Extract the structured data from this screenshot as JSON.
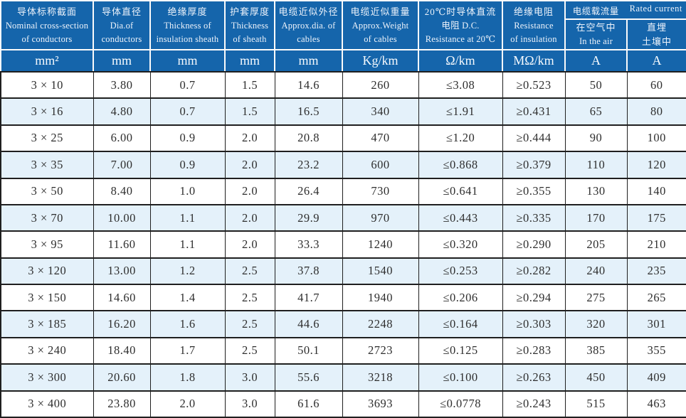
{
  "colors": {
    "header_bg": "#1565ab",
    "header_text": "#edf3fb",
    "row_alt_bg": "#e4f1fa",
    "grid_line": "#1f1f1f",
    "body_text": "#2e2e2e"
  },
  "table": {
    "header": {
      "col1": {
        "zh": "导体标称截面",
        "en1": "Nominal cross-section",
        "en2": "of conductors",
        "unit": "mm²"
      },
      "col2": {
        "zh": "导体直径",
        "en1": "Dia.of",
        "en2": "conductors",
        "unit": "mm"
      },
      "col3": {
        "zh": "绝缘厚度",
        "en1": "Thickness of",
        "en2": "insulation sheath",
        "unit": "mm"
      },
      "col4": {
        "zh": "护套厚度",
        "en1": "Thickness",
        "en2": "of sheath",
        "unit": "mm"
      },
      "col5": {
        "zh": "电缆近似外径",
        "en1": "Approx.dia. of",
        "en2": "cables",
        "unit": "mm"
      },
      "col6": {
        "zh": "电缆近似重量",
        "en1": "Approx.Weight",
        "en2": "of cables",
        "unit": "Kg/km"
      },
      "col7": {
        "zh": "20℃时导体直流",
        "en1": "电阻 D.C.",
        "en2": "Resistance at 20℃",
        "unit": "Ω/km"
      },
      "col8": {
        "zh": "绝缘电阻",
        "en1": "Resistance",
        "en2": "of insulation",
        "unit": "MΩ/km"
      },
      "group": {
        "zh": "电缆载流量",
        "en": "Rated current"
      },
      "col9": {
        "line1": "在空气中",
        "line2": "In the air",
        "unit": "A"
      },
      "col10": {
        "line1": "直埋",
        "line2": "土壤中",
        "unit": "A"
      }
    },
    "rows": [
      [
        "3 × 10",
        "3.80",
        "0.7",
        "1.5",
        "14.6",
        "260",
        "≤3.08",
        "≥0.523",
        "50",
        "60"
      ],
      [
        "3 × 16",
        "4.80",
        "0.7",
        "1.5",
        "16.5",
        "340",
        "≤1.91",
        "≥0.431",
        "65",
        "80"
      ],
      [
        "3 × 25",
        "6.00",
        "0.9",
        "2.0",
        "20.8",
        "470",
        "≤1.20",
        "≥0.444",
        "90",
        "100"
      ],
      [
        "3 × 35",
        "7.00",
        "0.9",
        "2.0",
        "23.2",
        "600",
        "≤0.868",
        "≥0.379",
        "110",
        "120"
      ],
      [
        "3 × 50",
        "8.40",
        "1.0",
        "2.0",
        "26.4",
        "730",
        "≤0.641",
        "≥0.355",
        "130",
        "140"
      ],
      [
        "3 × 70",
        "10.00",
        "1.1",
        "2.0",
        "29.9",
        "970",
        "≤0.443",
        "≥0.335",
        "170",
        "175"
      ],
      [
        "3 × 95",
        "11.60",
        "1.1",
        "2.0",
        "33.3",
        "1240",
        "≤0.320",
        "≥0.290",
        "205",
        "210"
      ],
      [
        "3 × 120",
        "13.00",
        "1.2",
        "2.5",
        "37.8",
        "1540",
        "≤0.253",
        "≥0.282",
        "240",
        "235"
      ],
      [
        "3 × 150",
        "14.60",
        "1.4",
        "2.5",
        "41.7",
        "1940",
        "≤0.206",
        "≥0.294",
        "275",
        "265"
      ],
      [
        "3 × 185",
        "16.20",
        "1.6",
        "2.5",
        "44.6",
        "2248",
        "≤0.164",
        "≥0.303",
        "320",
        "301"
      ],
      [
        "3 × 240",
        "18.40",
        "1.7",
        "2.5",
        "50.1",
        "2723",
        "≤0.125",
        "≥0.283",
        "385",
        "355"
      ],
      [
        "3 × 300",
        "20.60",
        "1.8",
        "3.0",
        "55.6",
        "3218",
        "≤0.100",
        "≥0.263",
        "450",
        "409"
      ],
      [
        "3 × 400",
        "23.80",
        "2.0",
        "3.0",
        "61.6",
        "3693",
        "≤0.0778",
        "≥0.243",
        "515",
        "463"
      ]
    ]
  }
}
